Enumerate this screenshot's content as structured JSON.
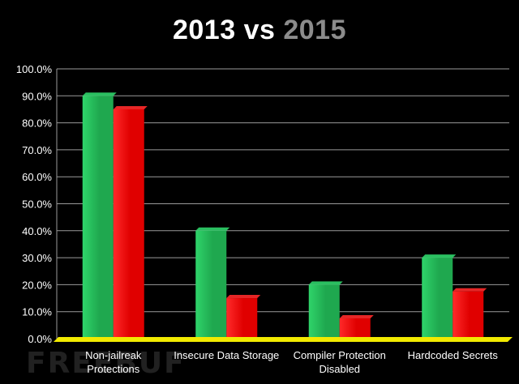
{
  "chart_data": {
    "type": "bar",
    "title": {
      "part1": "2013",
      "part2": "vs",
      "part3": "2015"
    },
    "categories": [
      [
        "Non-jailreak",
        "Protections"
      ],
      [
        "Insecure Data Storage"
      ],
      [
        "Compiler Protection",
        "Disabled"
      ],
      [
        "Hardcoded Secrets"
      ]
    ],
    "series": [
      {
        "values": [
          90.0,
          40.0,
          20.0,
          30.0
        ],
        "color": "#1fa84f",
        "color_light": "#2fd46a"
      },
      {
        "values": [
          85.0,
          15.0,
          7.5,
          17.5
        ],
        "color": "#e00000",
        "color_light": "#ff2a2a"
      }
    ],
    "ylim": [
      0,
      100
    ],
    "yticks": [
      "0.0%",
      "10.0%",
      "20.0%",
      "30.0%",
      "40.0%",
      "50.0%",
      "60.0%",
      "70.0%",
      "80.0%",
      "90.0%",
      "100.0%"
    ],
    "grid": true,
    "baseline_color": "#f2ea00"
  },
  "watermark": "FREEBUF"
}
